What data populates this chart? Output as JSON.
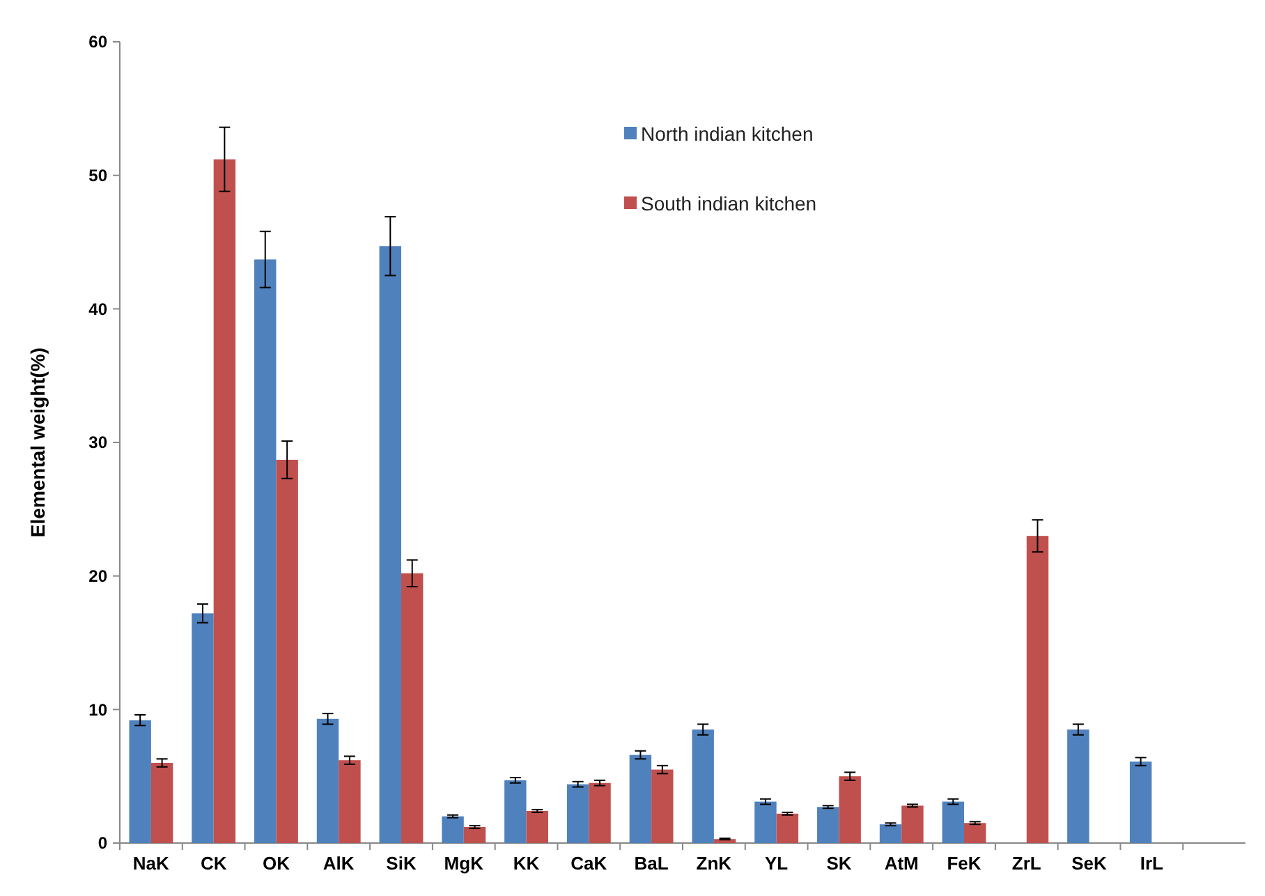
{
  "chart_data": {
    "type": "bar",
    "ylabel": "Elemental weight(%)",
    "categories": [
      "NaK",
      "CK",
      "OK",
      "AlK",
      "SiK",
      "MgK",
      "KK",
      "CaK",
      "BaL",
      "ZnK",
      "YL",
      "SK",
      "AtM",
      "FeK",
      "ZrL",
      "SeK",
      "IrL",
      null
    ],
    "series": [
      {
        "name": "North indian kitchen",
        "color": "#4f81bd",
        "values": [
          9.2,
          17.2,
          43.7,
          9.3,
          44.7,
          2.0,
          4.7,
          4.4,
          6.6,
          8.5,
          3.1,
          2.7,
          1.4,
          3.1,
          null,
          8.5,
          6.1,
          null
        ],
        "errors": [
          0.4,
          0.7,
          2.1,
          0.4,
          2.2,
          0.1,
          0.2,
          0.2,
          0.3,
          0.4,
          0.2,
          0.1,
          0.1,
          0.2,
          null,
          0.4,
          0.3,
          null
        ]
      },
      {
        "name": "South indian kitchen",
        "color": "#c0504d",
        "values": [
          6.0,
          51.2,
          28.7,
          6.2,
          20.2,
          1.2,
          2.4,
          4.5,
          5.5,
          0.3,
          2.2,
          5.0,
          2.8,
          1.5,
          23.0,
          null,
          null,
          null
        ],
        "errors": [
          0.3,
          2.4,
          1.4,
          0.3,
          1.0,
          0.1,
          0.1,
          0.2,
          0.3,
          0.05,
          0.1,
          0.3,
          0.1,
          0.1,
          1.2,
          null,
          null,
          null
        ]
      }
    ],
    "ylim": [
      0,
      60
    ],
    "yticks": [
      0,
      10,
      20,
      30,
      40,
      50,
      60
    ],
    "grid": false,
    "legend": "top right"
  }
}
